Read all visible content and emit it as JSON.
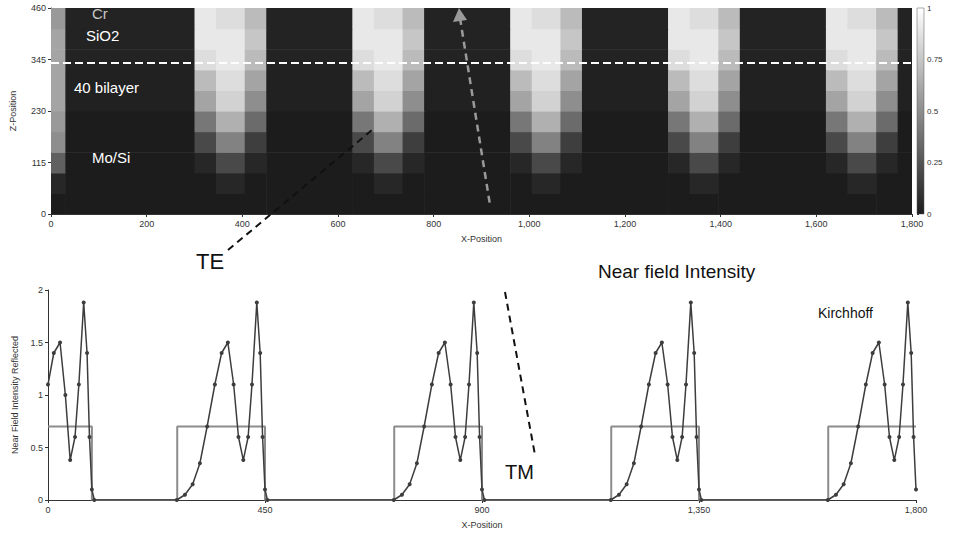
{
  "chart_data": [
    {
      "type": "heatmap",
      "x_label": "X-Position",
      "y_label": "Z-Position",
      "xlim": [
        0,
        1800
      ],
      "ylim": [
        0,
        460
      ],
      "xticks": [
        0,
        200,
        400,
        600,
        800,
        {
          "value": 1000,
          "label": "1,000"
        },
        {
          "value": 1200,
          "label": "1,200"
        },
        {
          "value": 1400,
          "label": "1,400"
        },
        {
          "value": 1600,
          "label": "1,600"
        },
        {
          "value": 1800,
          "label": "1,800"
        }
      ],
      "yticks": [
        0,
        115,
        230,
        345,
        460
      ],
      "grid": false,
      "x_edges": [
        0,
        30,
        300,
        345,
        405,
        450,
        630,
        675,
        735,
        780,
        960,
        1005,
        1065,
        1110,
        1290,
        1335,
        1395,
        1440,
        1620,
        1665,
        1725,
        1770,
        1800
      ],
      "y_edges": [
        0,
        46,
        92,
        138,
        184,
        230,
        276,
        322,
        368,
        414,
        460
      ],
      "cells": [
        [
          0,
          0,
          0,
          0,
          0,
          0,
          0,
          0,
          0,
          0,
          0,
          0,
          0,
          0,
          0,
          0,
          0,
          0,
          0,
          0,
          0,
          0
        ],
        [
          0.05,
          0,
          0,
          0.05,
          0,
          0,
          0,
          0.05,
          0,
          0,
          0,
          0.05,
          0,
          0,
          0,
          0.05,
          0,
          0,
          0,
          0.05,
          0,
          0
        ],
        [
          0.3,
          0,
          0.05,
          0.2,
          0.05,
          0,
          0.05,
          0.2,
          0.05,
          0,
          0.05,
          0.2,
          0.05,
          0,
          0.05,
          0.2,
          0.05,
          0,
          0.05,
          0.2,
          0.05,
          0
        ],
        [
          0.5,
          0,
          0.2,
          0.45,
          0.15,
          0,
          0.2,
          0.45,
          0.15,
          0,
          0.2,
          0.45,
          0.15,
          0,
          0.2,
          0.45,
          0.15,
          0,
          0.2,
          0.45,
          0.15,
          0
        ],
        [
          0.55,
          0,
          0.4,
          0.65,
          0.35,
          0,
          0.4,
          0.65,
          0.35,
          0,
          0.4,
          0.65,
          0.35,
          0,
          0.4,
          0.65,
          0.35,
          0,
          0.4,
          0.65,
          0.35,
          0
        ],
        [
          0.6,
          0.02,
          0.6,
          0.8,
          0.5,
          0.02,
          0.6,
          0.8,
          0.5,
          0.02,
          0.6,
          0.8,
          0.5,
          0.02,
          0.6,
          0.8,
          0.5,
          0.02,
          0.6,
          0.8,
          0.5,
          0.02
        ],
        [
          0.6,
          0.02,
          0.7,
          0.85,
          0.6,
          0.02,
          0.7,
          0.85,
          0.6,
          0.02,
          0.7,
          0.85,
          0.6,
          0.02,
          0.7,
          0.85,
          0.6,
          0.02,
          0.7,
          0.85,
          0.6,
          0.02
        ],
        [
          0.6,
          0.03,
          0.85,
          0.9,
          0.7,
          0.03,
          0.85,
          0.9,
          0.7,
          0.03,
          0.85,
          0.9,
          0.7,
          0.03,
          0.85,
          0.9,
          0.7,
          0.03,
          0.85,
          0.9,
          0.7,
          0.03
        ],
        [
          0.6,
          0.03,
          0.9,
          0.9,
          0.75,
          0.03,
          0.9,
          0.9,
          0.75,
          0.03,
          0.9,
          0.9,
          0.75,
          0.03,
          0.9,
          0.9,
          0.75,
          0.03,
          0.9,
          0.9,
          0.75,
          0.03
        ],
        [
          0.55,
          0.03,
          0.9,
          0.85,
          0.7,
          0.03,
          0.9,
          0.85,
          0.7,
          0.03,
          0.9,
          0.85,
          0.7,
          0.03,
          0.9,
          0.85,
          0.7,
          0.03,
          0.9,
          0.85,
          0.7,
          0.03
        ]
      ],
      "colorbar_range": [
        0,
        1
      ],
      "colorbar_ticks": [
        0,
        0.25,
        0.5,
        0.75,
        1
      ],
      "dashed_line_z": 338,
      "annotations": [
        "Cr",
        "SiO2",
        "40 bilayer",
        "Mo/Si"
      ]
    },
    {
      "type": "line",
      "x_label": "X-Position",
      "y_label": "Near Field Intensity Reflected",
      "xlim": [
        0,
        1800
      ],
      "ylim": [
        0,
        2
      ],
      "xticks": [
        0,
        450,
        900,
        {
          "value": 1350,
          "label": "1,350"
        },
        {
          "value": 1800,
          "label": "1,800"
        }
      ],
      "yticks": [
        0,
        0.5,
        1,
        1.5,
        2
      ],
      "grid": false,
      "series": [
        {
          "name": "Near field Intensity",
          "color": "#3d3d3d",
          "marker": "circle",
          "x": [
            0,
            12,
            25,
            36,
            46,
            56,
            64,
            74,
            81,
            86,
            91,
            96,
            267,
            284,
            300,
            315,
            330,
            346,
            360,
            373,
            385,
            395,
            405,
            415,
            423,
            433,
            440,
            445,
            450,
            455,
            717,
            734,
            750,
            765,
            780,
            796,
            810,
            823,
            835,
            845,
            855,
            865,
            873,
            883,
            890,
            895,
            900,
            905,
            1167,
            1184,
            1200,
            1215,
            1230,
            1246,
            1260,
            1273,
            1285,
            1295,
            1305,
            1315,
            1323,
            1333,
            1340,
            1345,
            1350,
            1355,
            1617,
            1634,
            1650,
            1665,
            1680,
            1696,
            1710,
            1723,
            1735,
            1745,
            1755,
            1765,
            1773,
            1783,
            1790,
            1795,
            1800
          ],
          "values": [
            1.1,
            1.4,
            1.5,
            1.0,
            0.38,
            0.6,
            1.1,
            1.88,
            1.4,
            0.6,
            0.1,
            0,
            0,
            0.05,
            0.15,
            0.35,
            0.7,
            1.1,
            1.4,
            1.5,
            1.1,
            0.6,
            0.38,
            0.6,
            1.1,
            1.88,
            1.4,
            0.6,
            0.1,
            0,
            0,
            0.05,
            0.15,
            0.35,
            0.7,
            1.1,
            1.4,
            1.5,
            1.1,
            0.6,
            0.38,
            0.6,
            1.1,
            1.88,
            1.4,
            0.6,
            0.1,
            0,
            0,
            0.05,
            0.15,
            0.35,
            0.7,
            1.1,
            1.4,
            1.5,
            1.1,
            0.6,
            0.38,
            0.6,
            1.1,
            1.88,
            1.4,
            0.6,
            0.1,
            0,
            0,
            0.05,
            0.15,
            0.35,
            0.7,
            1.1,
            1.4,
            1.5,
            1.1,
            0.6,
            0.38,
            0.6,
            1.1,
            1.88,
            1.4,
            0.6,
            0.1
          ]
        },
        {
          "name": "Kirchhoff",
          "color": "#8c8c8c",
          "marker": "none",
          "x": [
            0,
            91,
            91,
            268,
            268,
            450,
            450,
            718,
            718,
            900,
            900,
            1168,
            1168,
            1350,
            1350,
            1618,
            1618,
            1800
          ],
          "values": [
            0.7,
            0.7,
            0,
            0,
            0.7,
            0.7,
            0,
            0,
            0.7,
            0.7,
            0,
            0,
            0.7,
            0.7,
            0,
            0,
            0.7,
            0.7
          ]
        }
      ],
      "annotations": [
        "TE",
        "TM"
      ]
    }
  ]
}
